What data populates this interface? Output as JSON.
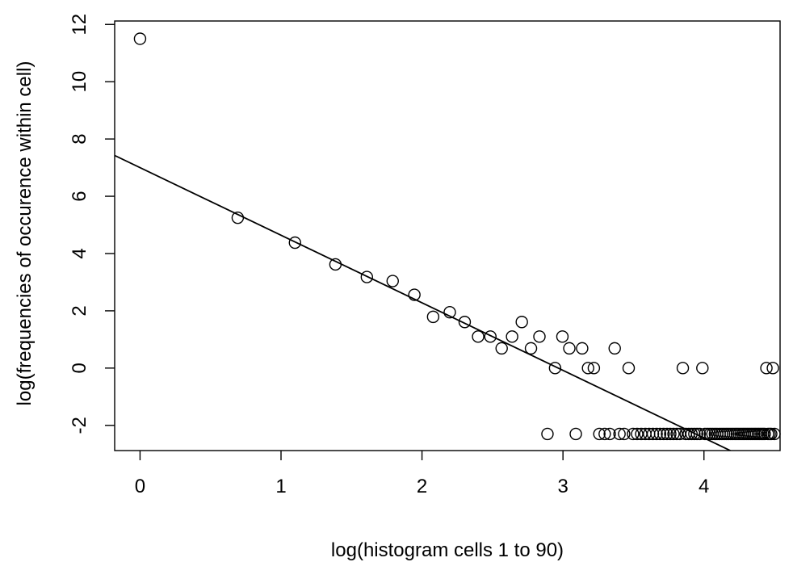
{
  "chart_data": {
    "type": "scatter",
    "title": "",
    "xlabel": "log(histogram cells 1 to 90)",
    "ylabel": "log(frequencies of occurence within cell)",
    "xlim": [
      -0.18,
      4.54
    ],
    "ylim": [
      -2.88,
      12.12
    ],
    "x_ticks": [
      0,
      1,
      2,
      3,
      4
    ],
    "y_ticks": [
      -2,
      0,
      2,
      4,
      6,
      8,
      10,
      12
    ],
    "x_tick_labels": [
      "0",
      "1",
      "2",
      "3",
      "4"
    ],
    "y_tick_labels": [
      "-2",
      "0",
      "2",
      "4",
      "6",
      "8",
      "10",
      "12"
    ],
    "grid": false,
    "points": [
      {
        "x": 0.0,
        "y": 11.5
      },
      {
        "x": 0.693,
        "y": 5.25
      },
      {
        "x": 1.099,
        "y": 4.38
      },
      {
        "x": 1.386,
        "y": 3.62
      },
      {
        "x": 1.609,
        "y": 3.18
      },
      {
        "x": 1.792,
        "y": 3.04
      },
      {
        "x": 1.946,
        "y": 2.56
      },
      {
        "x": 2.079,
        "y": 1.79
      },
      {
        "x": 2.197,
        "y": 1.95
      },
      {
        "x": 2.303,
        "y": 1.61
      },
      {
        "x": 2.398,
        "y": 1.1
      },
      {
        "x": 2.485,
        "y": 1.1
      },
      {
        "x": 2.565,
        "y": 0.69
      },
      {
        "x": 2.639,
        "y": 1.1
      },
      {
        "x": 2.708,
        "y": 1.61
      },
      {
        "x": 2.773,
        "y": 0.69
      },
      {
        "x": 2.833,
        "y": 1.1
      },
      {
        "x": 2.89,
        "y": -2.3
      },
      {
        "x": 2.944,
        "y": 0.0
      },
      {
        "x": 2.996,
        "y": 1.1
      },
      {
        "x": 3.045,
        "y": 0.69
      },
      {
        "x": 3.091,
        "y": -2.3
      },
      {
        "x": 3.136,
        "y": 0.69
      },
      {
        "x": 3.178,
        "y": 0.0
      },
      {
        "x": 3.219,
        "y": 0.0
      },
      {
        "x": 3.258,
        "y": -2.3
      },
      {
        "x": 3.296,
        "y": -2.3
      },
      {
        "x": 3.332,
        "y": -2.3
      },
      {
        "x": 3.367,
        "y": 0.69
      },
      {
        "x": 3.401,
        "y": -2.3
      },
      {
        "x": 3.434,
        "y": -2.3
      },
      {
        "x": 3.466,
        "y": 0.0
      },
      {
        "x": 3.497,
        "y": -2.3
      },
      {
        "x": 3.526,
        "y": -2.3
      },
      {
        "x": 3.555,
        "y": -2.3
      },
      {
        "x": 3.584,
        "y": -2.3
      },
      {
        "x": 3.611,
        "y": -2.3
      },
      {
        "x": 3.638,
        "y": -2.3
      },
      {
        "x": 3.664,
        "y": -2.3
      },
      {
        "x": 3.689,
        "y": -2.3
      },
      {
        "x": 3.714,
        "y": -2.3
      },
      {
        "x": 3.738,
        "y": -2.3
      },
      {
        "x": 3.761,
        "y": -2.3
      },
      {
        "x": 3.784,
        "y": -2.3
      },
      {
        "x": 3.807,
        "y": -2.3
      },
      {
        "x": 3.829,
        "y": -2.3
      },
      {
        "x": 3.85,
        "y": 0.0
      },
      {
        "x": 3.871,
        "y": -2.3
      },
      {
        "x": 3.892,
        "y": -2.3
      },
      {
        "x": 3.912,
        "y": -2.3
      },
      {
        "x": 3.932,
        "y": -2.3
      },
      {
        "x": 3.951,
        "y": -2.3
      },
      {
        "x": 3.97,
        "y": -2.3
      },
      {
        "x": 3.989,
        "y": 0.0
      },
      {
        "x": 4.007,
        "y": -2.3
      },
      {
        "x": 4.025,
        "y": -2.3
      },
      {
        "x": 4.043,
        "y": -2.3
      },
      {
        "x": 4.06,
        "y": -2.3
      },
      {
        "x": 4.078,
        "y": -2.3
      },
      {
        "x": 4.094,
        "y": -2.3
      },
      {
        "x": 4.111,
        "y": -2.3
      },
      {
        "x": 4.127,
        "y": -2.3
      },
      {
        "x": 4.143,
        "y": -2.3
      },
      {
        "x": 4.159,
        "y": -2.3
      },
      {
        "x": 4.174,
        "y": -2.3
      },
      {
        "x": 4.19,
        "y": -2.3
      },
      {
        "x": 4.205,
        "y": -2.3
      },
      {
        "x": 4.22,
        "y": -2.3
      },
      {
        "x": 4.234,
        "y": -2.3
      },
      {
        "x": 4.248,
        "y": -2.3
      },
      {
        "x": 4.263,
        "y": -2.3
      },
      {
        "x": 4.277,
        "y": -2.3
      },
      {
        "x": 4.29,
        "y": -2.3
      },
      {
        "x": 4.304,
        "y": -2.3
      },
      {
        "x": 4.317,
        "y": -2.3
      },
      {
        "x": 4.331,
        "y": -2.3
      },
      {
        "x": 4.344,
        "y": -2.3
      },
      {
        "x": 4.357,
        "y": -2.3
      },
      {
        "x": 4.369,
        "y": -2.3
      },
      {
        "x": 4.382,
        "y": -2.3
      },
      {
        "x": 4.394,
        "y": -2.3
      },
      {
        "x": 4.407,
        "y": -2.3
      },
      {
        "x": 4.419,
        "y": -2.3
      },
      {
        "x": 4.431,
        "y": -2.3
      },
      {
        "x": 4.443,
        "y": 0.0
      },
      {
        "x": 4.454,
        "y": -2.3
      },
      {
        "x": 4.466,
        "y": -2.3
      },
      {
        "x": 4.477,
        "y": -2.3
      },
      {
        "x": 4.489,
        "y": 0.0
      },
      {
        "x": 4.5,
        "y": -2.3
      }
    ],
    "fit_line": {
      "intercept": 7.0,
      "slope": -2.36
    }
  }
}
